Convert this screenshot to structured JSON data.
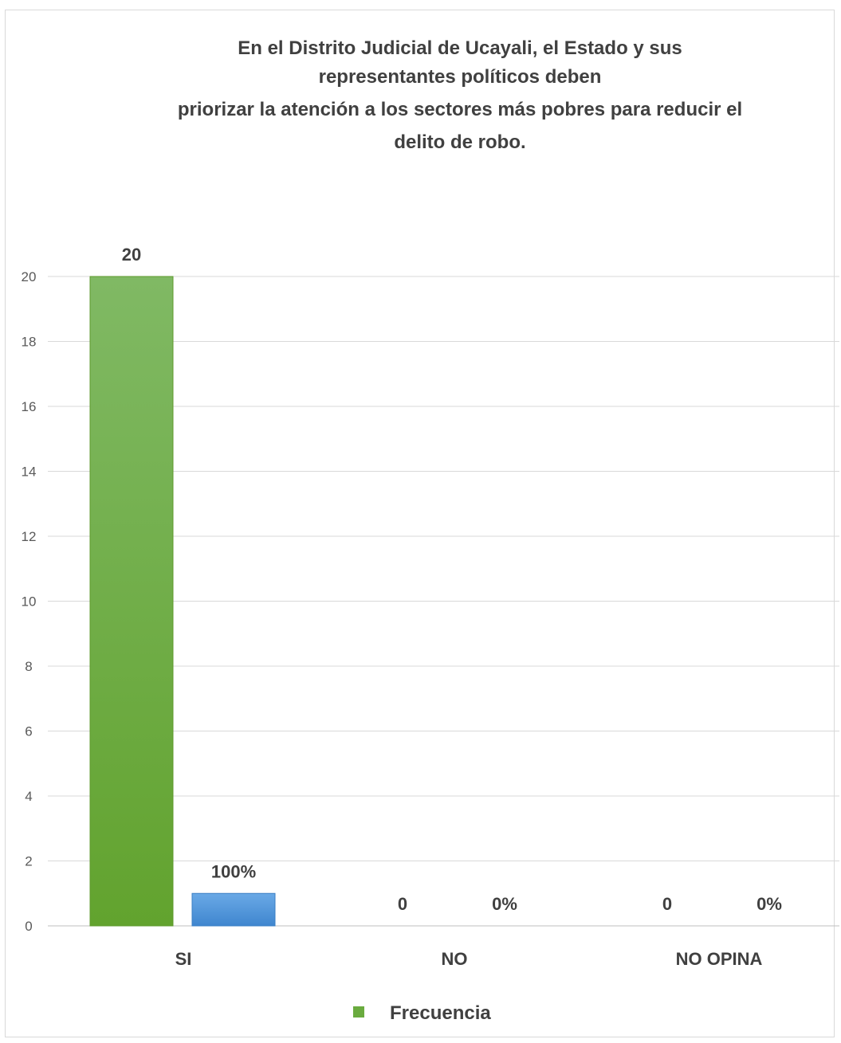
{
  "chart_data": {
    "type": "bar",
    "title": "En el Distrito Judicial de Ucayali, el Estado y sus representantes políticos deben priorizar la atención a los sectores más pobres para reducir el delito de robo.",
    "title_lines": [
      "En el Distrito Judicial de Ucayali, el Estado y sus",
      "representantes políticos deben",
      "priorizar la atención a los sectores más pobres para reducir el",
      "delito de robo."
    ],
    "categories": [
      "SI",
      "NO",
      "NO OPINA"
    ],
    "series": [
      {
        "name": "Frecuencia",
        "values": [
          20,
          0,
          0
        ],
        "labels": [
          "20",
          "0",
          "0"
        ],
        "color": "#6aab3f"
      },
      {
        "values": [
          1,
          0,
          0
        ],
        "labels": [
          "100%",
          "0%",
          "0%"
        ],
        "color": "#4a8fd4"
      }
    ],
    "ylim": [
      0,
      20
    ],
    "yticks": [
      "0",
      "2",
      "4",
      "6",
      "8",
      "10",
      "12",
      "14",
      "16",
      "18",
      "20"
    ],
    "xlabel": "",
    "ylabel": "",
    "grid": true,
    "legend": {
      "position": "bottom",
      "entries": [
        "Frecuencia"
      ]
    }
  }
}
